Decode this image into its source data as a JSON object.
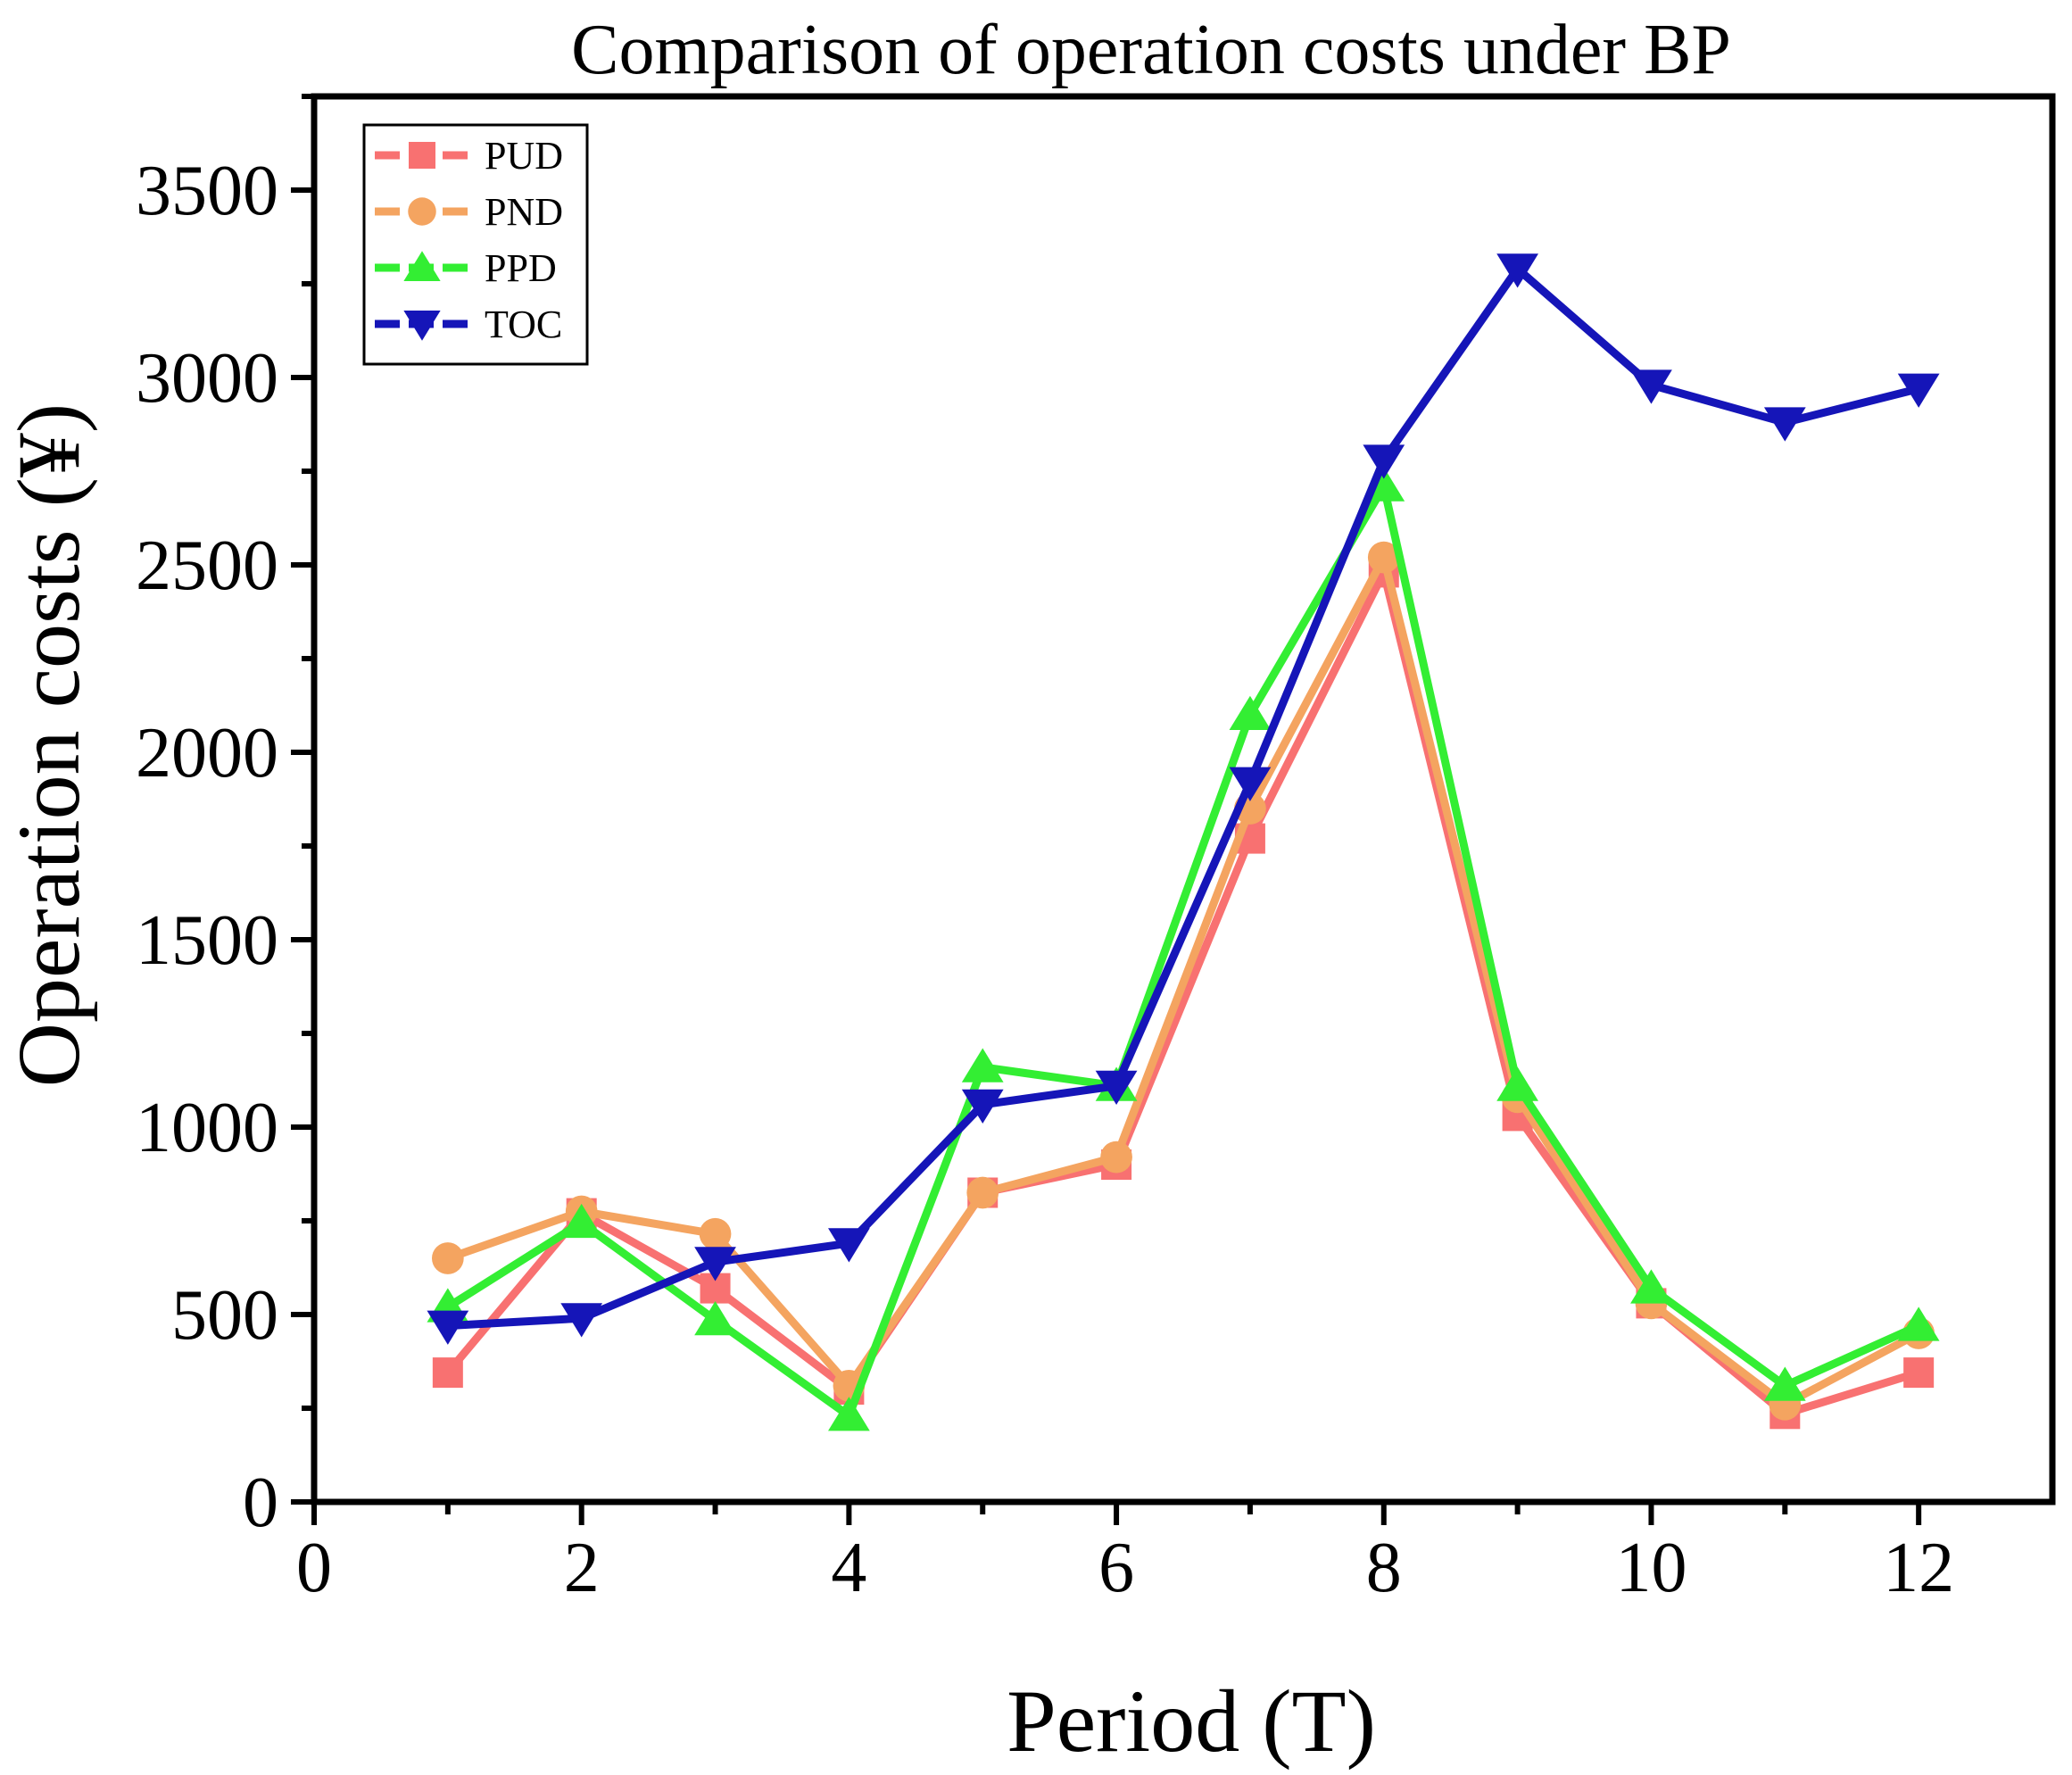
{
  "chart_data": {
    "type": "line",
    "title": "Comparison of operation costs under BP",
    "xlabel": "Period (T)",
    "ylabel": "Operation costs (¥)",
    "xlim": [
      0,
      13
    ],
    "ylim": [
      0,
      3750
    ],
    "xticks": [
      0,
      2,
      4,
      6,
      8,
      10,
      12
    ],
    "xtick_labels": [
      "0",
      "2",
      "4",
      "6",
      "8",
      "10",
      "12"
    ],
    "yticks": [
      0,
      500,
      1000,
      1500,
      2000,
      2500,
      3000,
      3500
    ],
    "ytick_labels": [
      "0",
      "500",
      "1000",
      "1500",
      "2000",
      "2500",
      "3000",
      "3500"
    ],
    "grid": false,
    "legend_position": "top-left",
    "x": [
      1,
      2,
      3,
      4,
      5,
      6,
      7,
      8,
      9,
      10,
      11,
      12
    ],
    "series": [
      {
        "name": "PUD",
        "color": "#f87171",
        "marker": "square",
        "values": [
          345,
          770,
          570,
          300,
          825,
          900,
          1770,
          2480,
          1030,
          530,
          235,
          345
        ]
      },
      {
        "name": "PND",
        "color": "#f4a460",
        "marker": "circle",
        "values": [
          650,
          775,
          715,
          310,
          825,
          920,
          1850,
          2520,
          1080,
          530,
          260,
          450
        ]
      },
      {
        "name": "PPD",
        "color": "#33ee33",
        "marker": "triangle-up",
        "values": [
          520,
          745,
          485,
          230,
          1160,
          1110,
          2100,
          2710,
          1110,
          570,
          310,
          470
        ]
      },
      {
        "name": "TOC",
        "color": "#1515b8",
        "marker": "triangle-down",
        "values": [
          470,
          490,
          640,
          690,
          1060,
          1110,
          1920,
          2780,
          3290,
          2980,
          2880,
          2970
        ]
      }
    ]
  }
}
